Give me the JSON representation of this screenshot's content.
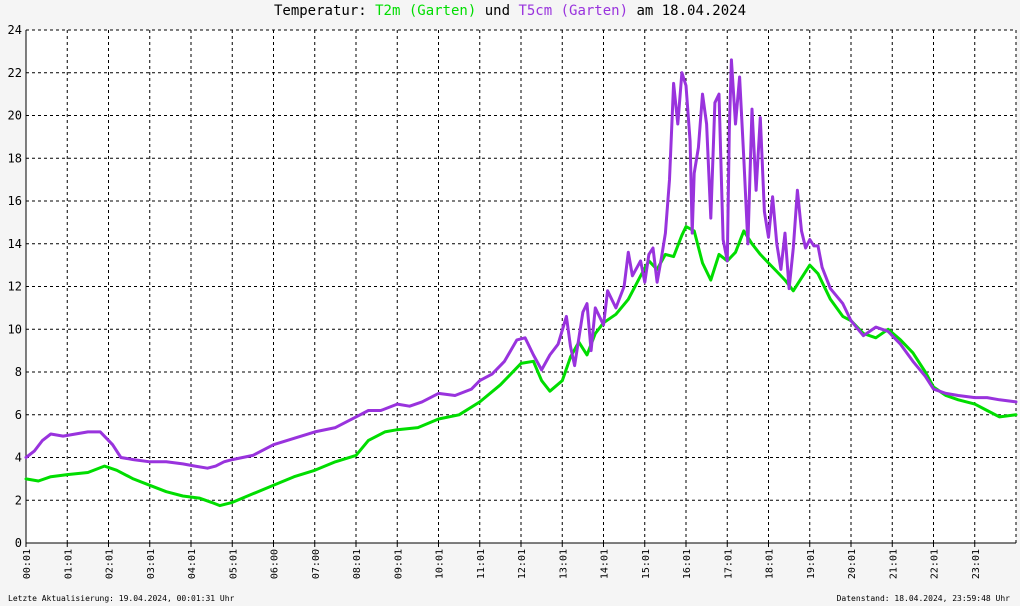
{
  "title": {
    "prefix": "Temperatur: ",
    "series1": "T2m (Garten)",
    "middle": " und ",
    "series2": "T5cm (Garten)",
    "suffix": " am 18.04.2024"
  },
  "footer": {
    "left": "Letzte Aktualisierung: 19.04.2024, 00:01:31 Uhr",
    "right": "Datenstand: 18.04.2024, 23:59:48 Uhr"
  },
  "colors": {
    "t2m": "#00dd00",
    "t5cm": "#9933dd",
    "grid": "#000000",
    "background": "#f5f5f5"
  },
  "chart_data": {
    "type": "line",
    "title": "Temperatur: T2m (Garten) und T5cm (Garten) am 18.04.2024",
    "xlabel": "",
    "ylabel": "",
    "xlim": [
      0,
      24
    ],
    "ylim": [
      0,
      24
    ],
    "yticks": [
      0,
      2,
      4,
      6,
      8,
      10,
      12,
      14,
      16,
      18,
      20,
      22,
      24
    ],
    "xtick_labels": [
      "00:01",
      "01:01",
      "02:01",
      "03:01",
      "04:01",
      "05:01",
      "06:00",
      "07:00",
      "08:01",
      "09:01",
      "10:01",
      "11:01",
      "12:01",
      "13:01",
      "14:01",
      "15:01",
      "16:01",
      "17:01",
      "18:01",
      "19:01",
      "20:01",
      "21:01",
      "22:01",
      "23:01"
    ],
    "grid": true,
    "series": [
      {
        "name": "T2m (Garten)",
        "color": "#00dd00",
        "x": [
          0.0,
          0.3,
          0.6,
          1.0,
          1.5,
          1.9,
          2.2,
          2.6,
          3.0,
          3.4,
          3.8,
          4.2,
          4.5,
          4.7,
          5.0,
          5.5,
          6.0,
          6.5,
          7.0,
          7.5,
          8.0,
          8.3,
          8.7,
          9.0,
          9.5,
          10.0,
          10.5,
          11.0,
          11.5,
          12.0,
          12.3,
          12.5,
          12.7,
          13.0,
          13.2,
          13.4,
          13.6,
          13.8,
          14.0,
          14.3,
          14.6,
          14.9,
          15.1,
          15.3,
          15.5,
          15.7,
          15.9,
          16.0,
          16.2,
          16.4,
          16.6,
          16.8,
          17.0,
          17.2,
          17.4,
          17.6,
          17.8,
          18.0,
          18.2,
          18.4,
          18.6,
          18.8,
          19.0,
          19.2,
          19.5,
          19.8,
          20.0,
          20.3,
          20.6,
          20.9,
          21.2,
          21.5,
          21.8,
          22.0,
          22.3,
          22.6,
          23.0,
          23.3,
          23.6,
          24.0
        ],
        "y": [
          3.0,
          2.9,
          3.1,
          3.2,
          3.3,
          3.6,
          3.4,
          3.0,
          2.7,
          2.4,
          2.2,
          2.1,
          1.9,
          1.75,
          1.9,
          2.3,
          2.7,
          3.1,
          3.4,
          3.8,
          4.1,
          4.8,
          5.2,
          5.3,
          5.4,
          5.8,
          6.0,
          6.6,
          7.4,
          8.4,
          8.5,
          7.6,
          7.1,
          7.6,
          8.7,
          9.4,
          8.8,
          9.8,
          10.3,
          10.7,
          11.4,
          12.5,
          13.2,
          12.8,
          13.5,
          13.4,
          14.4,
          14.8,
          14.6,
          13.1,
          12.3,
          13.5,
          13.2,
          13.6,
          14.6,
          14.0,
          13.5,
          13.1,
          12.7,
          12.3,
          11.8,
          12.4,
          13.0,
          12.6,
          11.4,
          10.6,
          10.4,
          9.8,
          9.6,
          10.0,
          9.5,
          8.9,
          8.0,
          7.3,
          6.9,
          6.7,
          6.5,
          6.2,
          5.9,
          6.0
        ]
      },
      {
        "name": "T5cm (Garten)",
        "color": "#9933dd",
        "x": [
          0.0,
          0.2,
          0.4,
          0.6,
          0.9,
          1.2,
          1.5,
          1.8,
          2.1,
          2.3,
          2.6,
          3.0,
          3.4,
          3.8,
          4.1,
          4.4,
          4.6,
          4.8,
          5.0,
          5.5,
          6.0,
          6.5,
          7.0,
          7.5,
          8.0,
          8.3,
          8.6,
          9.0,
          9.3,
          9.6,
          10.0,
          10.4,
          10.8,
          11.0,
          11.3,
          11.6,
          11.9,
          12.1,
          12.3,
          12.5,
          12.7,
          12.9,
          13.1,
          13.2,
          13.3,
          13.5,
          13.6,
          13.7,
          13.8,
          14.0,
          14.1,
          14.3,
          14.5,
          14.6,
          14.7,
          14.9,
          15.0,
          15.1,
          15.2,
          15.3,
          15.4,
          15.5,
          15.6,
          15.7,
          15.8,
          15.9,
          16.0,
          16.1,
          16.15,
          16.2,
          16.3,
          16.4,
          16.5,
          16.6,
          16.7,
          16.8,
          16.9,
          17.0,
          17.05,
          17.1,
          17.2,
          17.3,
          17.4,
          17.5,
          17.6,
          17.7,
          17.8,
          17.9,
          18.0,
          18.1,
          18.2,
          18.3,
          18.4,
          18.5,
          18.6,
          18.7,
          18.8,
          18.9,
          19.0,
          19.1,
          19.2,
          19.3,
          19.5,
          19.8,
          20.0,
          20.3,
          20.6,
          20.9,
          21.2,
          21.5,
          21.8,
          22.0,
          22.3,
          22.6,
          23.0,
          23.3,
          23.6,
          24.0
        ],
        "y": [
          4.0,
          4.3,
          4.8,
          5.1,
          5.0,
          5.1,
          5.2,
          5.2,
          4.6,
          4.0,
          3.9,
          3.8,
          3.8,
          3.7,
          3.6,
          3.5,
          3.6,
          3.8,
          3.9,
          4.1,
          4.6,
          4.9,
          5.2,
          5.4,
          5.9,
          6.2,
          6.2,
          6.5,
          6.4,
          6.6,
          7.0,
          6.9,
          7.2,
          7.6,
          7.9,
          8.5,
          9.5,
          9.6,
          8.8,
          8.1,
          8.8,
          9.3,
          10.6,
          9.2,
          8.3,
          10.8,
          11.2,
          9.0,
          11.0,
          10.2,
          11.8,
          11.0,
          12.0,
          13.6,
          12.5,
          13.2,
          12.2,
          13.5,
          13.8,
          12.2,
          13.3,
          14.5,
          17.0,
          21.5,
          19.6,
          22.0,
          21.4,
          18.8,
          14.5,
          17.3,
          18.5,
          21.0,
          19.6,
          15.2,
          20.6,
          21.0,
          14.2,
          13.2,
          19.3,
          22.6,
          19.6,
          21.8,
          18.0,
          14.0,
          20.3,
          16.5,
          19.9,
          15.5,
          14.3,
          16.2,
          14.0,
          12.8,
          14.5,
          11.9,
          13.8,
          16.5,
          14.6,
          13.8,
          14.2,
          13.9,
          13.9,
          12.9,
          11.9,
          11.2,
          10.4,
          9.7,
          10.1,
          9.9,
          9.3,
          8.5,
          7.8,
          7.2,
          7.0,
          6.9,
          6.8,
          6.8,
          6.7,
          6.6
        ]
      }
    ]
  }
}
